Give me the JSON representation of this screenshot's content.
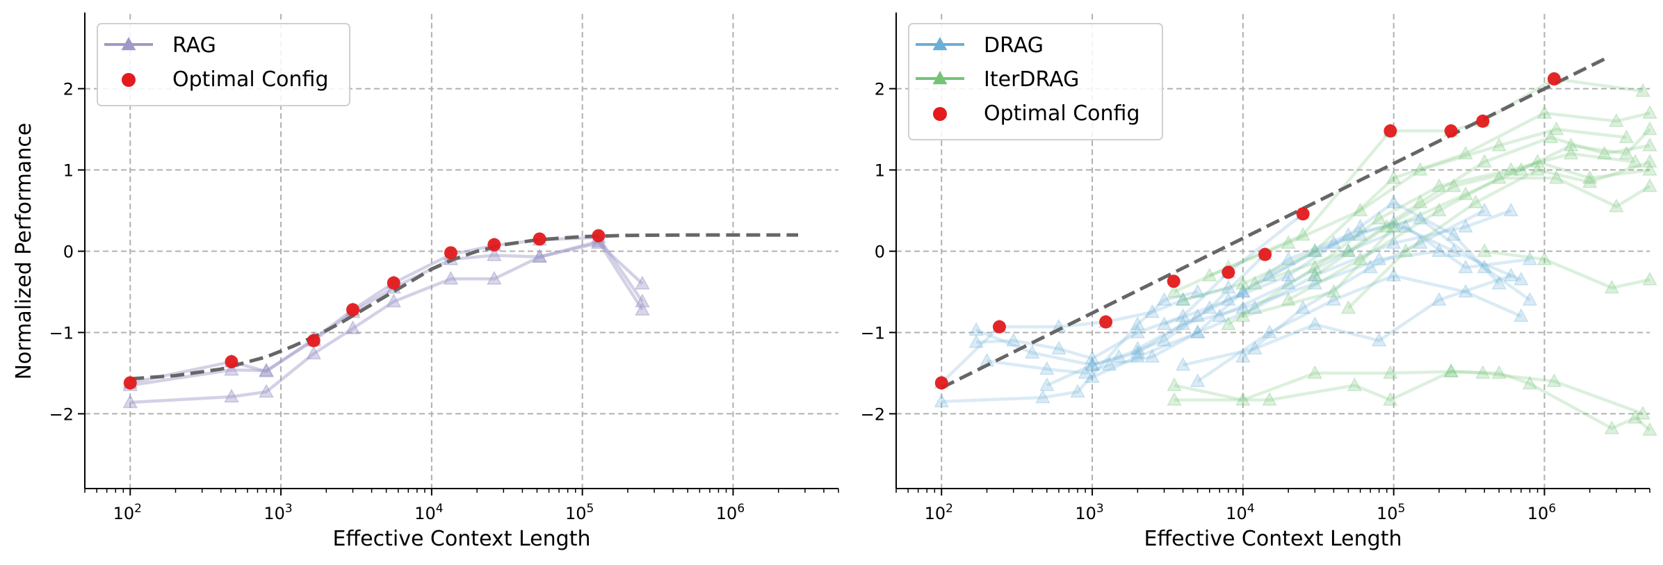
{
  "chart_data": [
    {
      "type": "line",
      "panel": "left",
      "title": "",
      "xlabel": "Effective Context Length",
      "ylabel": "Normalized Performance",
      "xscale": "log",
      "xlim": [
        50,
        5000000
      ],
      "ylim": [
        -2.92,
        2.92
      ],
      "xticks": [
        100,
        1000,
        10000,
        100000,
        1000000
      ],
      "xtick_labels": [
        {
          "base": "10",
          "exp": "2"
        },
        {
          "base": "10",
          "exp": "3"
        },
        {
          "base": "10",
          "exp": "4"
        },
        {
          "base": "10",
          "exp": "5"
        },
        {
          "base": "10",
          "exp": "6"
        }
      ],
      "yticks": [
        -2,
        -1,
        0,
        1,
        2
      ],
      "ytick_labels": [
        "−2",
        "−1",
        "0",
        "1",
        "2"
      ],
      "grid": true,
      "legend": {
        "placement": "top-left",
        "entries": [
          {
            "label": "RAG",
            "kind": "line-triangle",
            "color": "#9e9ac8"
          },
          {
            "label": "Optimal Config",
            "kind": "dot",
            "color": "#e41a1c"
          }
        ]
      },
      "series": [
        {
          "name": "RAG",
          "color": "#9e9ac8",
          "x": [
            100,
            470,
            800,
            1650,
            3000,
            5600,
            13400,
            26000,
            52000,
            128000,
            250000
          ],
          "y": [
            -1.62,
            -1.36,
            -1.48,
            -1.08,
            -0.72,
            -0.39,
            -0.04,
            0.07,
            0.14,
            0.17,
            -0.62
          ]
        },
        {
          "name": "RAG",
          "color": "#9e9ac8",
          "x": [
            100,
            470,
            800,
            1650,
            3000,
            5600,
            13400,
            26000,
            52000,
            128000,
            250000
          ],
          "y": [
            -1.65,
            -1.46,
            -1.47,
            -1.1,
            -0.75,
            -0.45,
            -0.1,
            -0.05,
            -0.07,
            0.1,
            -0.4
          ]
        },
        {
          "name": "RAG",
          "color": "#9e9ac8",
          "x": [
            100,
            470,
            800,
            1650,
            3000,
            5600,
            13400,
            26000,
            52000,
            128000,
            250000
          ],
          "y": [
            -1.86,
            -1.79,
            -1.73,
            -1.26,
            -0.95,
            -0.62,
            -0.34,
            -0.34,
            -0.07,
            0.12,
            -0.72
          ]
        }
      ],
      "optimal_config": {
        "name": "Optimal Config",
        "color": "#e41a1c",
        "x": [
          100,
          470,
          1650,
          3000,
          5600,
          13400,
          26000,
          52000,
          128000
        ],
        "y": [
          -1.62,
          -1.36,
          -1.1,
          -0.72,
          -0.39,
          -0.02,
          0.08,
          0.15,
          0.19
        ]
      },
      "fit_line": {
        "color": "#666666",
        "style": "dashed",
        "x": [
          100,
          200,
          400,
          800,
          1200,
          1800,
          2500,
          3500,
          5000,
          7000,
          10000,
          14000,
          20000,
          30000,
          50000,
          100000,
          200000,
          500000,
          1000000,
          2700000
        ],
        "y": [
          -1.57,
          -1.53,
          -1.45,
          -1.3,
          -1.17,
          -1.02,
          -0.88,
          -0.72,
          -0.55,
          -0.39,
          -0.22,
          -0.1,
          0.0,
          0.08,
          0.14,
          0.18,
          0.195,
          0.2,
          0.2,
          0.2
        ]
      }
    },
    {
      "type": "line",
      "panel": "right",
      "title": "",
      "xlabel": "Effective Context Length",
      "ylabel": "",
      "xscale": "log",
      "xlim": [
        50,
        5000000
      ],
      "ylim": [
        -2.92,
        2.92
      ],
      "xticks": [
        100,
        1000,
        10000,
        100000,
        1000000
      ],
      "xtick_labels": [
        {
          "base": "10",
          "exp": "2"
        },
        {
          "base": "10",
          "exp": "3"
        },
        {
          "base": "10",
          "exp": "4"
        },
        {
          "base": "10",
          "exp": "5"
        },
        {
          "base": "10",
          "exp": "6"
        }
      ],
      "yticks": [
        -2,
        -1,
        0,
        1,
        2
      ],
      "ytick_labels": [
        "−2",
        "−1",
        "0",
        "1",
        "2"
      ],
      "grid": true,
      "legend": {
        "placement": "top-left",
        "entries": [
          {
            "label": "DRAG",
            "kind": "line-triangle",
            "color": "#6baed6"
          },
          {
            "label": "IterDRAG",
            "kind": "line-triangle",
            "color": "#74c476"
          },
          {
            "label": "Optimal Config",
            "kind": "dot",
            "color": "#e41a1c"
          }
        ]
      },
      "series": [
        {
          "name": "DRAG",
          "color": "#6baed6",
          "x": [
            100,
            470,
            800,
            2000,
            3000,
            5000
          ],
          "y": [
            -1.85,
            -1.8,
            -1.73,
            -0.9,
            -0.6,
            -0.5
          ]
        },
        {
          "name": "DRAG",
          "color": "#6baed6",
          "x": [
            100,
            242,
            600,
            1230,
            2500,
            4000,
            8000
          ],
          "y": [
            -1.62,
            -0.93,
            -0.93,
            -0.87,
            -0.75,
            -0.6,
            -0.45
          ]
        },
        {
          "name": "DRAG",
          "color": "#6baed6",
          "x": [
            170,
            400,
            1000,
            1500,
            3000,
            6000,
            14000
          ],
          "y": [
            -0.97,
            -1.25,
            -1.4,
            -1.3,
            -1.1,
            -0.7,
            -0.04
          ]
        },
        {
          "name": "DRAG",
          "color": "#6baed6",
          "x": [
            170,
            300,
            600,
            1000,
            2000,
            4000,
            8000,
            25000
          ],
          "y": [
            -1.12,
            -1.1,
            -1.2,
            -1.32,
            -1.0,
            -0.8,
            -0.26,
            0.46
          ]
        },
        {
          "name": "DRAG",
          "color": "#6baed6",
          "x": [
            200,
            500,
            900,
            1300,
            2500,
            5000,
            10000,
            30000,
            60000
          ],
          "y": [
            -1.35,
            -1.45,
            -1.5,
            -1.4,
            -1.3,
            -1.0,
            -0.5,
            0.0,
            0.2
          ]
        },
        {
          "name": "DRAG",
          "color": "#6baed6",
          "x": [
            500,
            1000,
            2000,
            4000,
            10000,
            30000,
            80000,
            200000
          ],
          "y": [
            -1.65,
            -1.4,
            -1.25,
            -0.9,
            -0.7,
            -0.4,
            -0.1,
            0.0
          ]
        },
        {
          "name": "DRAG",
          "color": "#6baed6",
          "x": [
            1000,
            2000,
            5000,
            12000,
            30000,
            100000,
            300000,
            600000
          ],
          "y": [
            -1.55,
            -1.3,
            -1.0,
            -0.7,
            -0.3,
            0.1,
            0.3,
            0.5
          ]
        },
        {
          "name": "DRAG",
          "color": "#6baed6",
          "x": [
            2000,
            5000,
            10000,
            20000,
            50000,
            150000,
            400000,
            800000
          ],
          "y": [
            -1.2,
            -0.8,
            -0.5,
            -0.1,
            0.2,
            0.4,
            -0.2,
            -0.6
          ]
        },
        {
          "name": "DRAG",
          "color": "#6baed6",
          "x": [
            3000,
            8000,
            20000,
            60000,
            100000,
            250000,
            500000
          ],
          "y": [
            -0.9,
            -0.6,
            -0.3,
            0.3,
            0.6,
            0.2,
            -0.4
          ]
        },
        {
          "name": "DRAG",
          "color": "#6baed6",
          "x": [
            5000,
            15000,
            40000,
            100000,
            300000,
            700000
          ],
          "y": [
            -1.6,
            -1.0,
            -0.6,
            -0.3,
            -0.5,
            -0.8
          ]
        },
        {
          "name": "DRAG",
          "color": "#6baed6",
          "x": [
            4000,
            12000,
            30000,
            80000,
            200000,
            600000
          ],
          "y": [
            -1.4,
            -1.2,
            -0.9,
            -1.1,
            -0.6,
            -0.3
          ]
        },
        {
          "name": "DRAG",
          "color": "#6baed6",
          "x": [
            7000,
            20000,
            50000,
            120000,
            300000,
            800000
          ],
          "y": [
            -0.8,
            -0.4,
            0.0,
            0.3,
            -0.2,
            -0.1
          ]
        },
        {
          "name": "DRAG",
          "color": "#6baed6",
          "x": [
            10000,
            25000,
            70000,
            150000,
            400000
          ],
          "y": [
            -1.3,
            -0.7,
            -0.2,
            0.1,
            0.5
          ]
        },
        {
          "name": "DRAG",
          "color": "#6baed6",
          "x": [
            15000,
            40000,
            100000,
            250000,
            700000
          ],
          "y": [
            -0.3,
            0.1,
            0.35,
            0.0,
            -0.35
          ]
        },
        {
          "name": "IterDRAG",
          "color": "#74c476",
          "x": [
            3500,
            10000,
            30000,
            95000,
            240000,
            390000,
            1160000,
            4500000
          ],
          "y": [
            -1.65,
            -1.83,
            -1.5,
            -1.5,
            -1.48,
            -1.5,
            -1.6,
            -2.0
          ]
        },
        {
          "name": "IterDRAG",
          "color": "#74c476",
          "x": [
            3500,
            15000,
            55000,
            95000,
            240000,
            500000,
            800000,
            2800000,
            4000000,
            5000000
          ],
          "y": [
            -1.83,
            -1.83,
            -1.65,
            -1.83,
            -1.48,
            -1.5,
            -1.63,
            -2.18,
            -2.05,
            -2.2
          ]
        },
        {
          "name": "IterDRAG",
          "color": "#74c476",
          "x": [
            3500,
            8000,
            25000,
            95000,
            240000,
            390000,
            1160000,
            4500000
          ],
          "y": [
            -0.5,
            -0.2,
            0.2,
            1.48,
            1.48,
            1.6,
            2.12,
            1.97
          ]
        },
        {
          "name": "IterDRAG",
          "color": "#74c476",
          "x": [
            4000,
            10000,
            30000,
            100000,
            300000,
            1000000,
            3000000,
            5000000
          ],
          "y": [
            -0.6,
            -0.4,
            0.0,
            0.9,
            1.2,
            1.7,
            1.6,
            1.7
          ]
        },
        {
          "name": "IterDRAG",
          "color": "#74c476",
          "x": [
            6000,
            20000,
            60000,
            150000,
            500000,
            1200000,
            3500000
          ],
          "y": [
            -0.3,
            0.1,
            0.5,
            1.0,
            1.3,
            1.5,
            1.4
          ]
        },
        {
          "name": "IterDRAG",
          "color": "#74c476",
          "x": [
            8000,
            30000,
            80000,
            200000,
            600000,
            1500000,
            4000000
          ],
          "y": [
            -0.9,
            -0.2,
            0.4,
            0.8,
            1.0,
            1.2,
            1.1
          ]
        },
        {
          "name": "IterDRAG",
          "color": "#74c476",
          "x": [
            10000,
            40000,
            100000,
            300000,
            900000,
            2000000,
            5000000
          ],
          "y": [
            -0.8,
            -0.5,
            0.3,
            0.7,
            1.1,
            0.9,
            1.0
          ]
        },
        {
          "name": "IterDRAG",
          "color": "#74c476",
          "x": [
            12000,
            50000,
            150000,
            400000,
            1100000,
            2500000,
            5000000
          ],
          "y": [
            -0.4,
            0.0,
            0.6,
            1.1,
            1.4,
            1.2,
            1.3
          ]
        },
        {
          "name": "IterDRAG",
          "color": "#74c476",
          "x": [
            20000,
            60000,
            200000,
            500000,
            1200000,
            3000000,
            5000000
          ],
          "y": [
            -0.6,
            -0.1,
            0.5,
            0.9,
            0.9,
            0.55,
            0.8
          ]
        },
        {
          "name": "IterDRAG",
          "color": "#74c476",
          "x": [
            30000,
            90000,
            250000,
            700000,
            1500000,
            3500000,
            5000000
          ],
          "y": [
            -0.3,
            0.3,
            0.8,
            1.0,
            1.3,
            1.2,
            1.5
          ]
        },
        {
          "name": "IterDRAG",
          "color": "#74c476",
          "x": [
            50000,
            120000,
            350000,
            900000,
            2000000,
            5000000
          ],
          "y": [
            -0.7,
            0.0,
            0.6,
            1.0,
            0.85,
            1.1
          ]
        },
        {
          "name": "IterDRAG",
          "color": "#74c476",
          "x": [
            400000,
            1000000,
            2800000,
            5000000
          ],
          "y": [
            0.0,
            -0.1,
            -0.45,
            -0.35
          ]
        }
      ],
      "optimal_config": {
        "name": "Optimal Config",
        "color": "#e41a1c",
        "x": [
          100,
          242,
          1230,
          3470,
          8000,
          14000,
          25000,
          95000,
          240000,
          390000,
          1160000
        ],
        "y": [
          -1.62,
          -0.93,
          -0.87,
          -0.37,
          -0.26,
          -0.04,
          0.46,
          1.48,
          1.48,
          1.6,
          2.12
        ]
      },
      "fit_line": {
        "color": "#666666",
        "style": "dashed",
        "x": [
          100,
          2600000
        ],
        "y": [
          -1.68,
          2.38
        ]
      }
    }
  ]
}
